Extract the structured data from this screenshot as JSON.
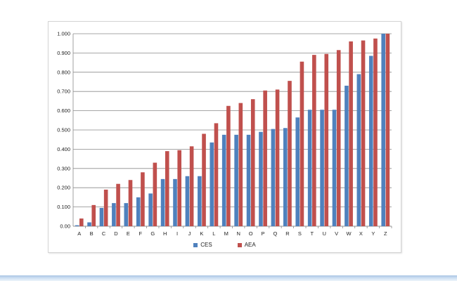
{
  "chart_data": {
    "type": "bar",
    "categories": [
      "A",
      "B",
      "C",
      "D",
      "E",
      "F",
      "G",
      "H",
      "I",
      "J",
      "K",
      "L",
      "M",
      "N",
      "O",
      "P",
      "Q",
      "R",
      "S",
      "T",
      "U",
      "V",
      "W",
      "X",
      "Y",
      "Z"
    ],
    "series": [
      {
        "name": "CES",
        "color": "#4f81bd",
        "values": [
          0.005,
          0.02,
          0.095,
          0.12,
          0.12,
          0.15,
          0.17,
          0.245,
          0.245,
          0.26,
          0.26,
          0.435,
          0.475,
          0.475,
          0.475,
          0.49,
          0.505,
          0.51,
          0.565,
          0.605,
          0.605,
          0.605,
          0.73,
          0.79,
          0.885,
          1.0
        ]
      },
      {
        "name": "AEA",
        "color": "#c0504d",
        "values": [
          0.04,
          0.11,
          0.19,
          0.22,
          0.24,
          0.28,
          0.33,
          0.39,
          0.395,
          0.415,
          0.48,
          0.535,
          0.625,
          0.64,
          0.66,
          0.705,
          0.71,
          0.755,
          0.855,
          0.89,
          0.895,
          0.915,
          0.96,
          0.965,
          0.975,
          1.0
        ]
      }
    ],
    "ylim": [
      0,
      1.0
    ],
    "yticks": [
      "0.00",
      "0.100",
      "0.200",
      "0.300",
      "0.400",
      "0.500",
      "0.600",
      "0.700",
      "0.800",
      "0.900",
      "1.000"
    ],
    "yticks_values": [
      0,
      0.1,
      0.2,
      0.3,
      0.4,
      0.5,
      0.6,
      0.7,
      0.8,
      0.9,
      1.0
    ],
    "grid": true,
    "legend": "bottom"
  }
}
